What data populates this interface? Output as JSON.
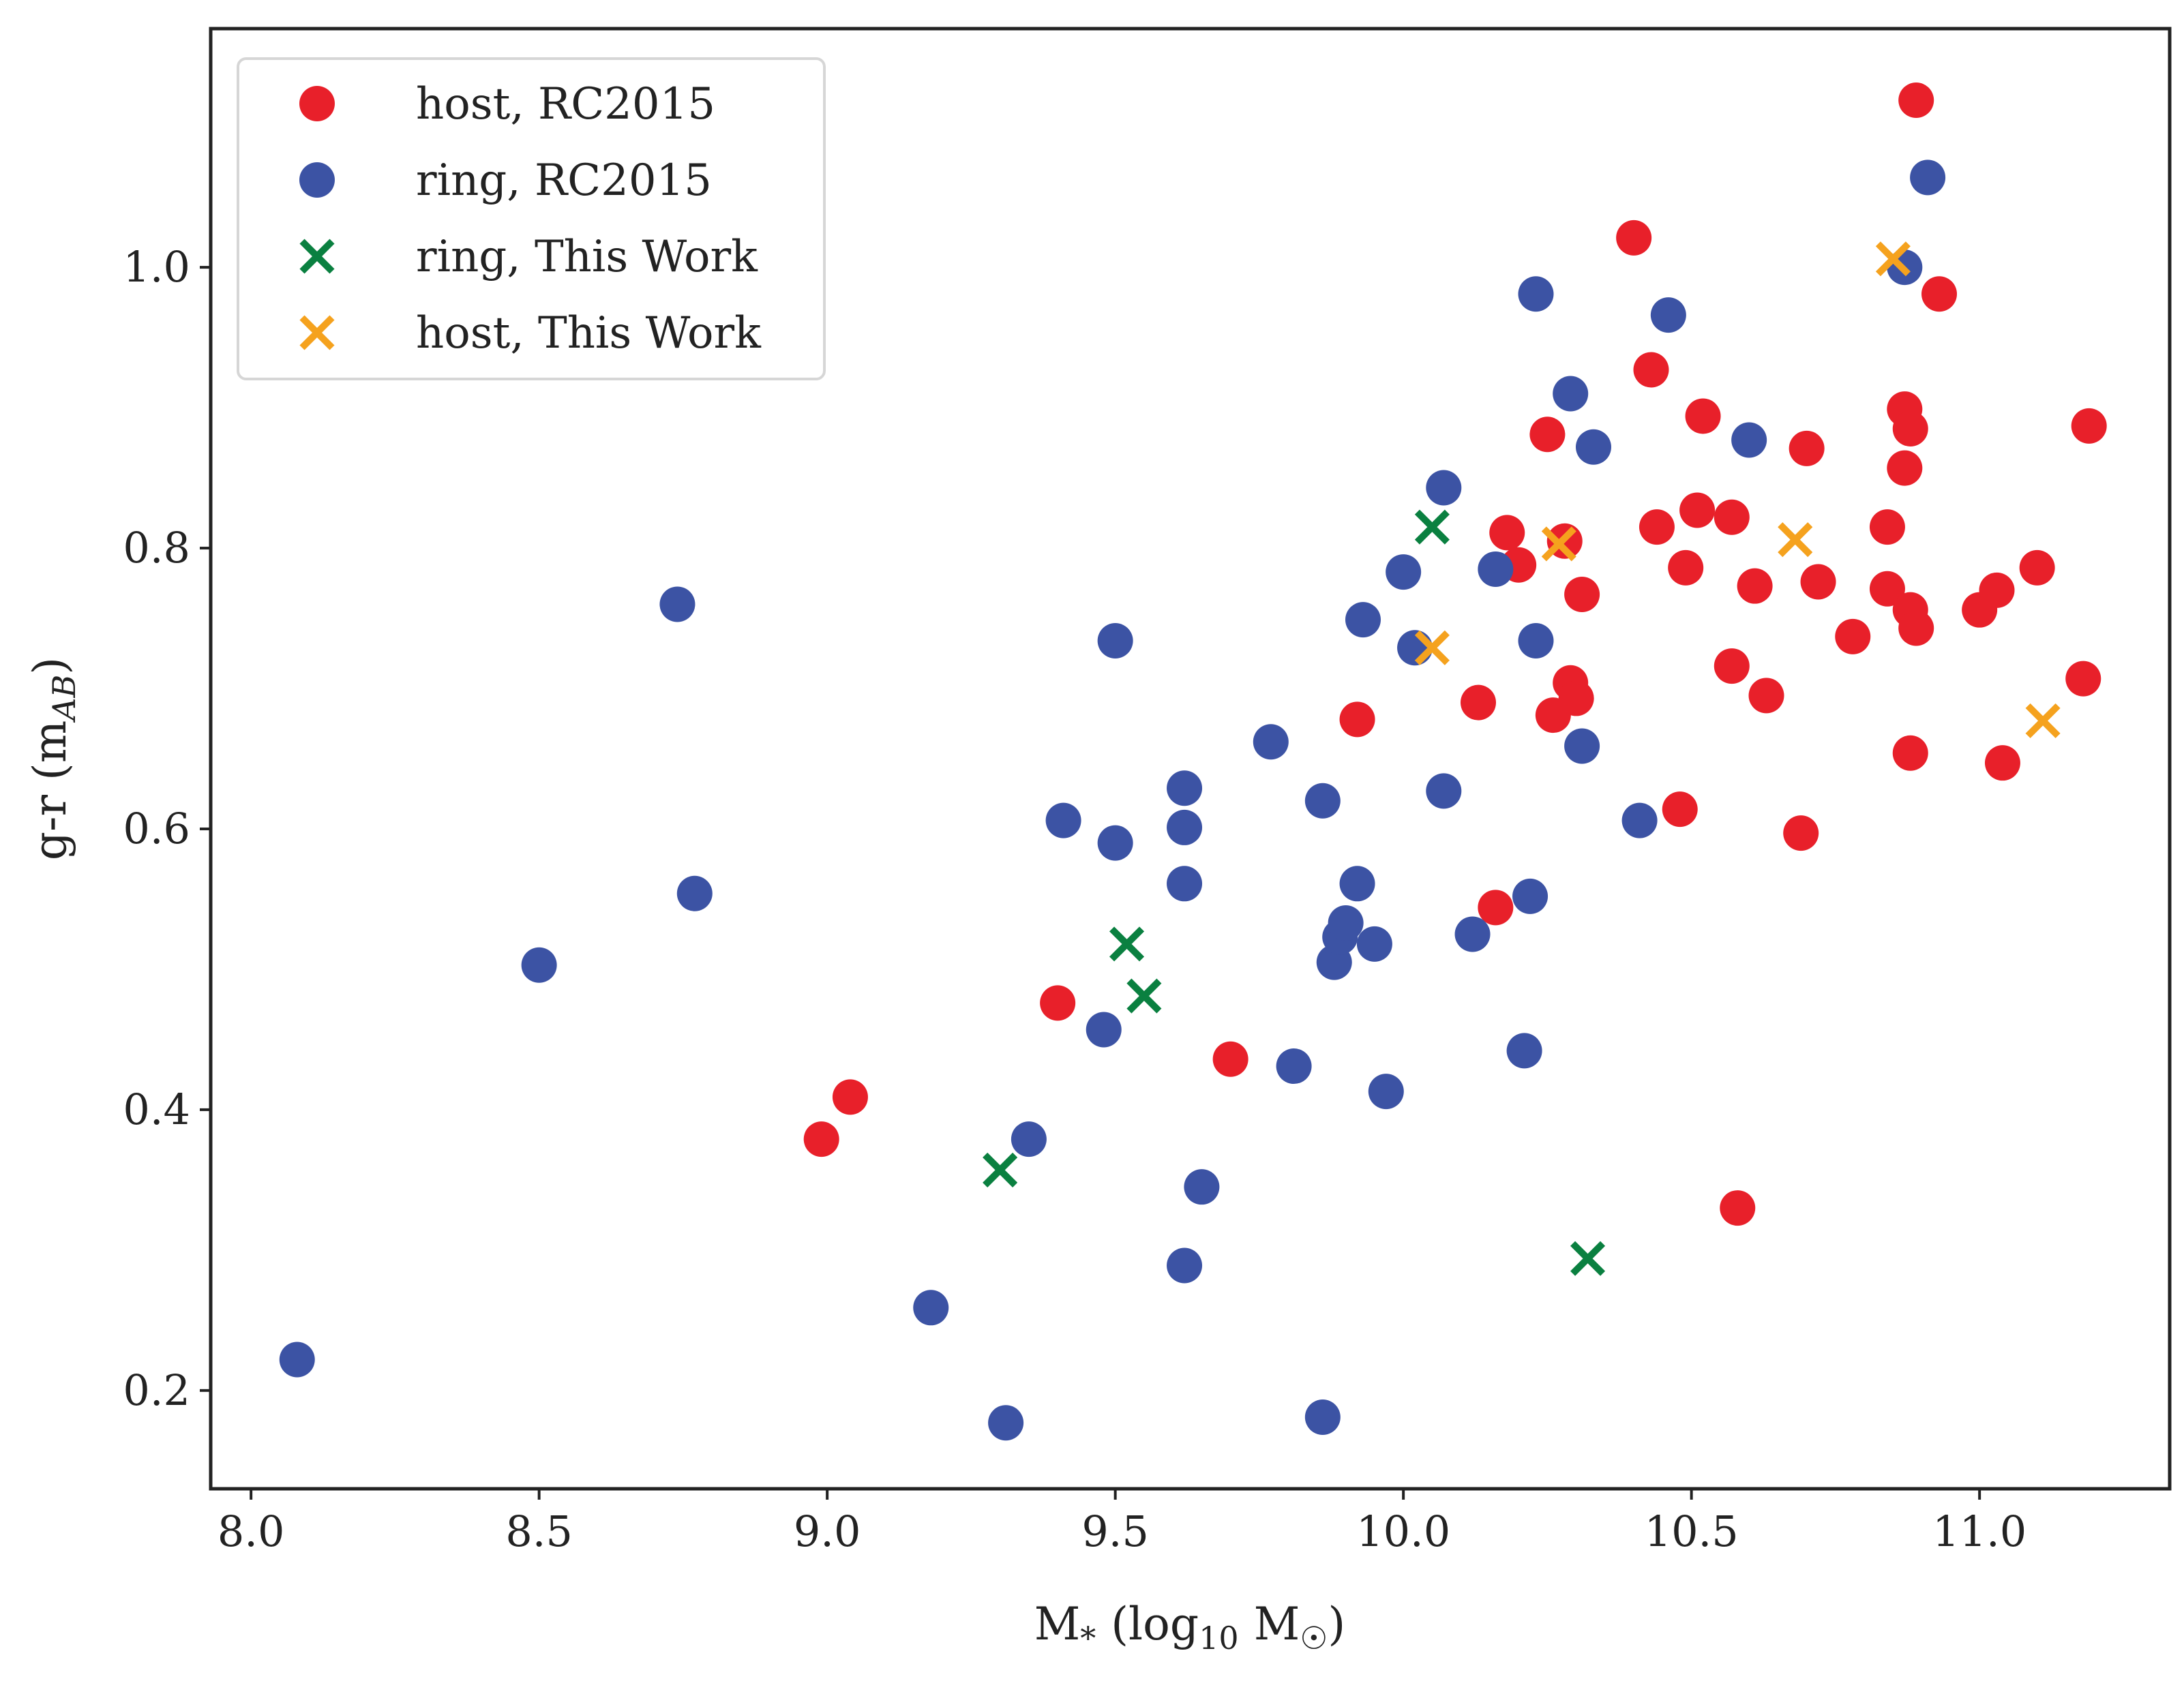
{
  "chart_data": {
    "type": "scatter",
    "title": "",
    "xlabel": "M",
    "xlabel_sub": "*",
    "xlabel_paren": "(log",
    "xlabel_paren_sub": "10",
    "xlabel_tail": "M",
    "xlabel_tail_sub": "☉",
    "xlabel_close": ")",
    "ylabel": "g-r (m",
    "ylabel_sub": "AB",
    "ylabel_close": ")",
    "xlim": [
      7.93,
      11.33
    ],
    "ylim": [
      0.13,
      1.17
    ],
    "x_ticks": [
      8.0,
      8.5,
      9.0,
      9.5,
      10.0,
      10.5,
      11.0
    ],
    "x_tick_labels": [
      "8.0",
      "8.5",
      "9.0",
      "9.5",
      "10.0",
      "10.5",
      "11.0"
    ],
    "y_ticks": [
      0.2,
      0.4,
      0.6,
      0.8,
      1.0
    ],
    "y_tick_labels": [
      "0.2",
      "0.4",
      "0.6",
      "0.8",
      "1.0"
    ],
    "grid": false,
    "legend_position": "top-left",
    "series": [
      {
        "name": "host, RC2015",
        "marker": "circle",
        "color": "#e8202a",
        "points": [
          [
            8.99,
            0.379
          ],
          [
            9.04,
            0.409
          ],
          [
            9.4,
            0.476
          ],
          [
            9.7,
            0.436
          ],
          [
            9.92,
            0.678
          ],
          [
            10.13,
            0.69
          ],
          [
            10.16,
            0.544
          ],
          [
            10.18,
            0.811
          ],
          [
            10.2,
            0.788
          ],
          [
            10.25,
            0.881
          ],
          [
            10.26,
            0.681
          ],
          [
            10.28,
            0.805
          ],
          [
            10.29,
            0.704
          ],
          [
            10.3,
            0.693
          ],
          [
            10.31,
            0.767
          ],
          [
            10.4,
            1.021
          ],
          [
            10.43,
            0.927
          ],
          [
            10.44,
            0.815
          ],
          [
            10.48,
            0.614
          ],
          [
            10.49,
            0.786
          ],
          [
            10.51,
            0.827
          ],
          [
            10.52,
            0.894
          ],
          [
            10.57,
            0.822
          ],
          [
            10.57,
            0.716
          ],
          [
            10.58,
            0.33
          ],
          [
            10.61,
            0.773
          ],
          [
            10.63,
            0.695
          ],
          [
            10.69,
            0.597
          ],
          [
            10.7,
            0.871
          ],
          [
            10.72,
            0.776
          ],
          [
            10.78,
            0.737
          ],
          [
            10.84,
            0.815
          ],
          [
            10.84,
            0.771
          ],
          [
            10.87,
            0.899
          ],
          [
            10.87,
            0.857
          ],
          [
            10.88,
            0.885
          ],
          [
            10.88,
            0.756
          ],
          [
            10.88,
            0.654
          ],
          [
            10.89,
            1.119
          ],
          [
            10.89,
            0.743
          ],
          [
            10.93,
            0.981
          ],
          [
            11.0,
            0.756
          ],
          [
            11.03,
            0.77
          ],
          [
            11.04,
            0.647
          ],
          [
            11.1,
            0.786
          ],
          [
            11.18,
            0.707
          ],
          [
            11.19,
            0.887
          ]
        ]
      },
      {
        "name": "ring, RC2015",
        "marker": "circle",
        "color": "#3c53a4",
        "points": [
          [
            8.08,
            0.222
          ],
          [
            8.5,
            0.503
          ],
          [
            8.74,
            0.76
          ],
          [
            8.77,
            0.554
          ],
          [
            9.18,
            0.259
          ],
          [
            9.31,
            0.177
          ],
          [
            9.35,
            0.379
          ],
          [
            9.41,
            0.606
          ],
          [
            9.48,
            0.457
          ],
          [
            9.5,
            0.734
          ],
          [
            9.5,
            0.59
          ],
          [
            9.62,
            0.289
          ],
          [
            9.62,
            0.629
          ],
          [
            9.62,
            0.601
          ],
          [
            9.62,
            0.561
          ],
          [
            9.65,
            0.345
          ],
          [
            9.77,
            0.662
          ],
          [
            9.81,
            0.431
          ],
          [
            9.86,
            0.62
          ],
          [
            9.86,
            0.181
          ],
          [
            9.88,
            0.505
          ],
          [
            9.89,
            0.523
          ],
          [
            9.9,
            0.533
          ],
          [
            9.92,
            0.561
          ],
          [
            9.93,
            0.749
          ],
          [
            9.95,
            0.518
          ],
          [
            9.97,
            0.413
          ],
          [
            10.0,
            0.783
          ],
          [
            10.02,
            0.729
          ],
          [
            10.07,
            0.843
          ],
          [
            10.07,
            0.627
          ],
          [
            10.12,
            0.525
          ],
          [
            10.16,
            0.785
          ],
          [
            10.21,
            0.442
          ],
          [
            10.22,
            0.552
          ],
          [
            10.23,
            0.734
          ],
          [
            10.23,
            0.981
          ],
          [
            10.29,
            0.91
          ],
          [
            10.31,
            0.659
          ],
          [
            10.33,
            0.872
          ],
          [
            10.41,
            0.606
          ],
          [
            10.46,
            0.966
          ],
          [
            10.6,
            0.877
          ],
          [
            10.87,
            1.0
          ],
          [
            10.91,
            1.064
          ]
        ]
      },
      {
        "name": "ring, This Work",
        "marker": "x",
        "color": "#0a8040",
        "points": [
          [
            9.3,
            0.357
          ],
          [
            9.52,
            0.518
          ],
          [
            9.55,
            0.481
          ],
          [
            10.05,
            0.815
          ],
          [
            10.32,
            0.294
          ]
        ]
      },
      {
        "name": "host, This Work",
        "marker": "x",
        "color": "#f5a21e",
        "points": [
          [
            10.05,
            0.729
          ],
          [
            10.27,
            0.803
          ],
          [
            10.68,
            0.806
          ],
          [
            10.85,
            1.006
          ],
          [
            11.11,
            0.677
          ]
        ]
      }
    ]
  }
}
